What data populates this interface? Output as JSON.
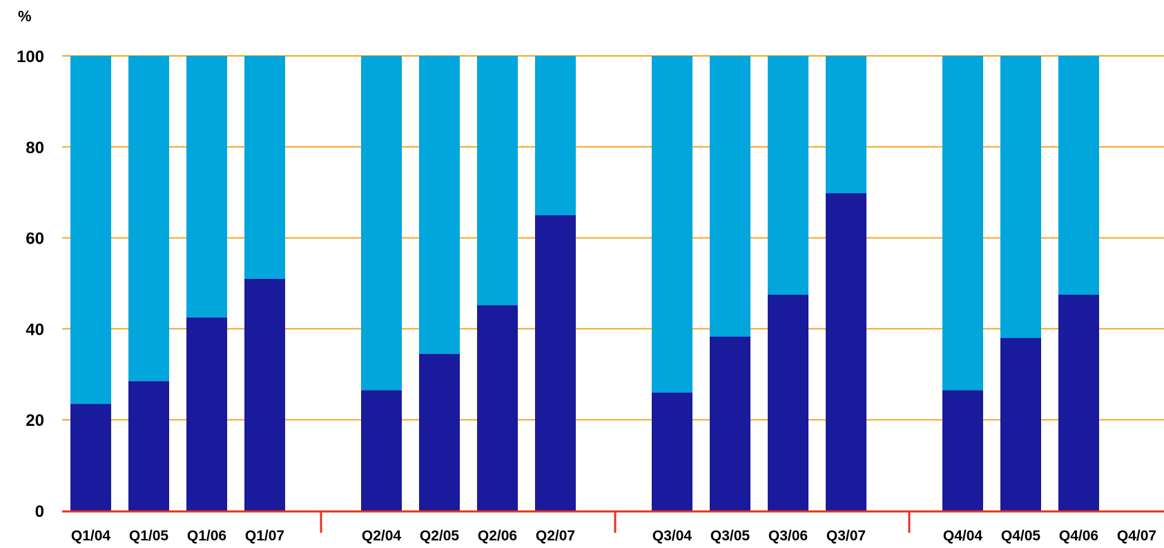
{
  "chart_data": {
    "type": "bar",
    "stacked": true,
    "y_unit_label": "%",
    "ylim": [
      0,
      100
    ],
    "yticks": [
      0,
      20,
      40,
      60,
      80,
      100
    ],
    "grid": true,
    "legend": "none",
    "categories": [
      "Q1/04",
      "Q1/05",
      "Q1/06",
      "Q1/07",
      "Q2/04",
      "Q2/05",
      "Q2/06",
      "Q2/07",
      "Q3/04",
      "Q3/05",
      "Q3/06",
      "Q3/07",
      "Q4/04",
      "Q4/05",
      "Q4/06",
      "Q4/07"
    ],
    "groups": [
      [
        "Q1/04",
        "Q1/05",
        "Q1/06",
        "Q1/07"
      ],
      [
        "Q2/04",
        "Q2/05",
        "Q2/06",
        "Q2/07"
      ],
      [
        "Q3/04",
        "Q3/05",
        "Q3/06",
        "Q3/07"
      ],
      [
        "Q4/04",
        "Q4/05",
        "Q4/06",
        "Q4/07"
      ]
    ],
    "series": [
      {
        "values": [
          23.5,
          28.5,
          42.5,
          51,
          26.5,
          34.5,
          45.2,
          65,
          26,
          38.3,
          47.5,
          69.8,
          26.5,
          38,
          47.5,
          null
        ],
        "color": "#1a1a9c"
      },
      {
        "values": [
          76.5,
          71.5,
          57.5,
          49,
          73.5,
          65.5,
          54.8,
          35,
          74,
          61.7,
          52.5,
          30.2,
          73.5,
          62,
          52.5,
          null
        ],
        "color": "#00a6dc"
      }
    ],
    "colors": {
      "gridline": "#f5a623",
      "axis": "#e8321e",
      "text": "#000000"
    }
  }
}
